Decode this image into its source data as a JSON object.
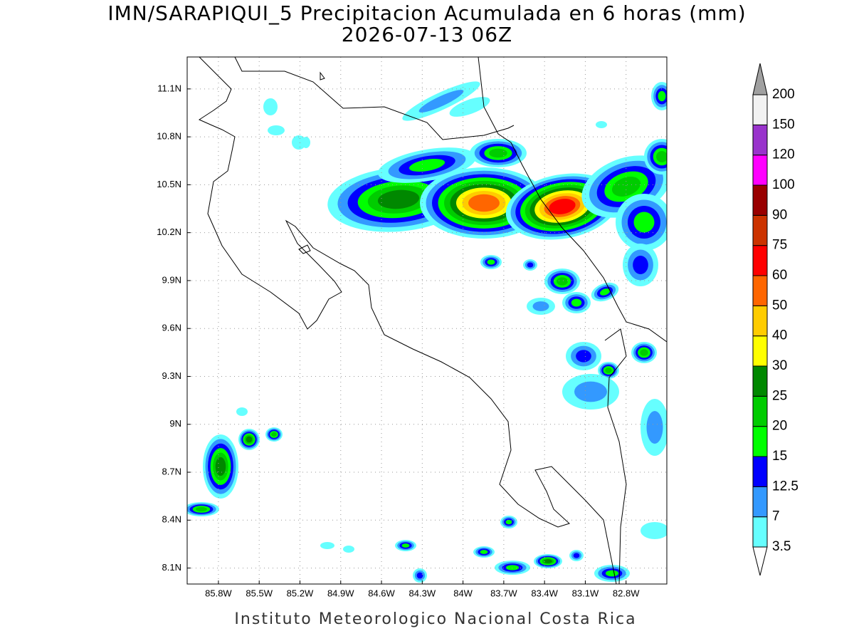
{
  "title": "IMN/SARAPIQUI_5 Precipitacion Acumulada en 6 horas (mm)",
  "subtitle": "2026-07-13 06Z",
  "footer": "Instituto Meteorologico Nacional Costa Rica",
  "map": {
    "xlim": [
      -86.03,
      -82.5
    ],
    "ylim": [
      8.0,
      11.3
    ],
    "xticks": [
      {
        "value": -85.8,
        "label": "85.8W"
      },
      {
        "value": -85.5,
        "label": "85.5W"
      },
      {
        "value": -85.2,
        "label": "85.2W"
      },
      {
        "value": -84.9,
        "label": "84.9W"
      },
      {
        "value": -84.6,
        "label": "84.6W"
      },
      {
        "value": -84.3,
        "label": "84.3W"
      },
      {
        "value": -84.0,
        "label": "84W"
      },
      {
        "value": -83.7,
        "label": "83.7W"
      },
      {
        "value": -83.4,
        "label": "83.4W"
      },
      {
        "value": -83.1,
        "label": "83.1W"
      },
      {
        "value": -82.8,
        "label": "82.8W"
      }
    ],
    "yticks": [
      {
        "value": 8.1,
        "label": "8.1N"
      },
      {
        "value": 8.4,
        "label": "8.4N"
      },
      {
        "value": 8.7,
        "label": "8.7N"
      },
      {
        "value": 9.0,
        "label": "9N"
      },
      {
        "value": 9.3,
        "label": "9.3N"
      },
      {
        "value": 9.6,
        "label": "9.6N"
      },
      {
        "value": 9.9,
        "label": "9.9N"
      },
      {
        "value": 10.2,
        "label": "10.2N"
      },
      {
        "value": 10.5,
        "label": "10.5N"
      },
      {
        "value": 10.8,
        "label": "10.8N"
      },
      {
        "value": 11.1,
        "label": "11.1N"
      }
    ],
    "grid": true
  },
  "colorbar": {
    "levels": [
      3.5,
      7,
      12.5,
      15,
      20,
      25,
      30,
      40,
      50,
      60,
      75,
      90,
      100,
      120,
      150,
      200
    ],
    "colors": [
      "#66ffff",
      "#3399ff",
      "#0000ff",
      "#00ff00",
      "#00cc00",
      "#008800",
      "#ffff00",
      "#ffcc00",
      "#ff6600",
      "#ff0000",
      "#cc3300",
      "#990000",
      "#ff00ff",
      "#9933cc",
      "#f2f2f2"
    ],
    "under_color": "#ffffff",
    "over_color": "#a0a0a0"
  }
}
